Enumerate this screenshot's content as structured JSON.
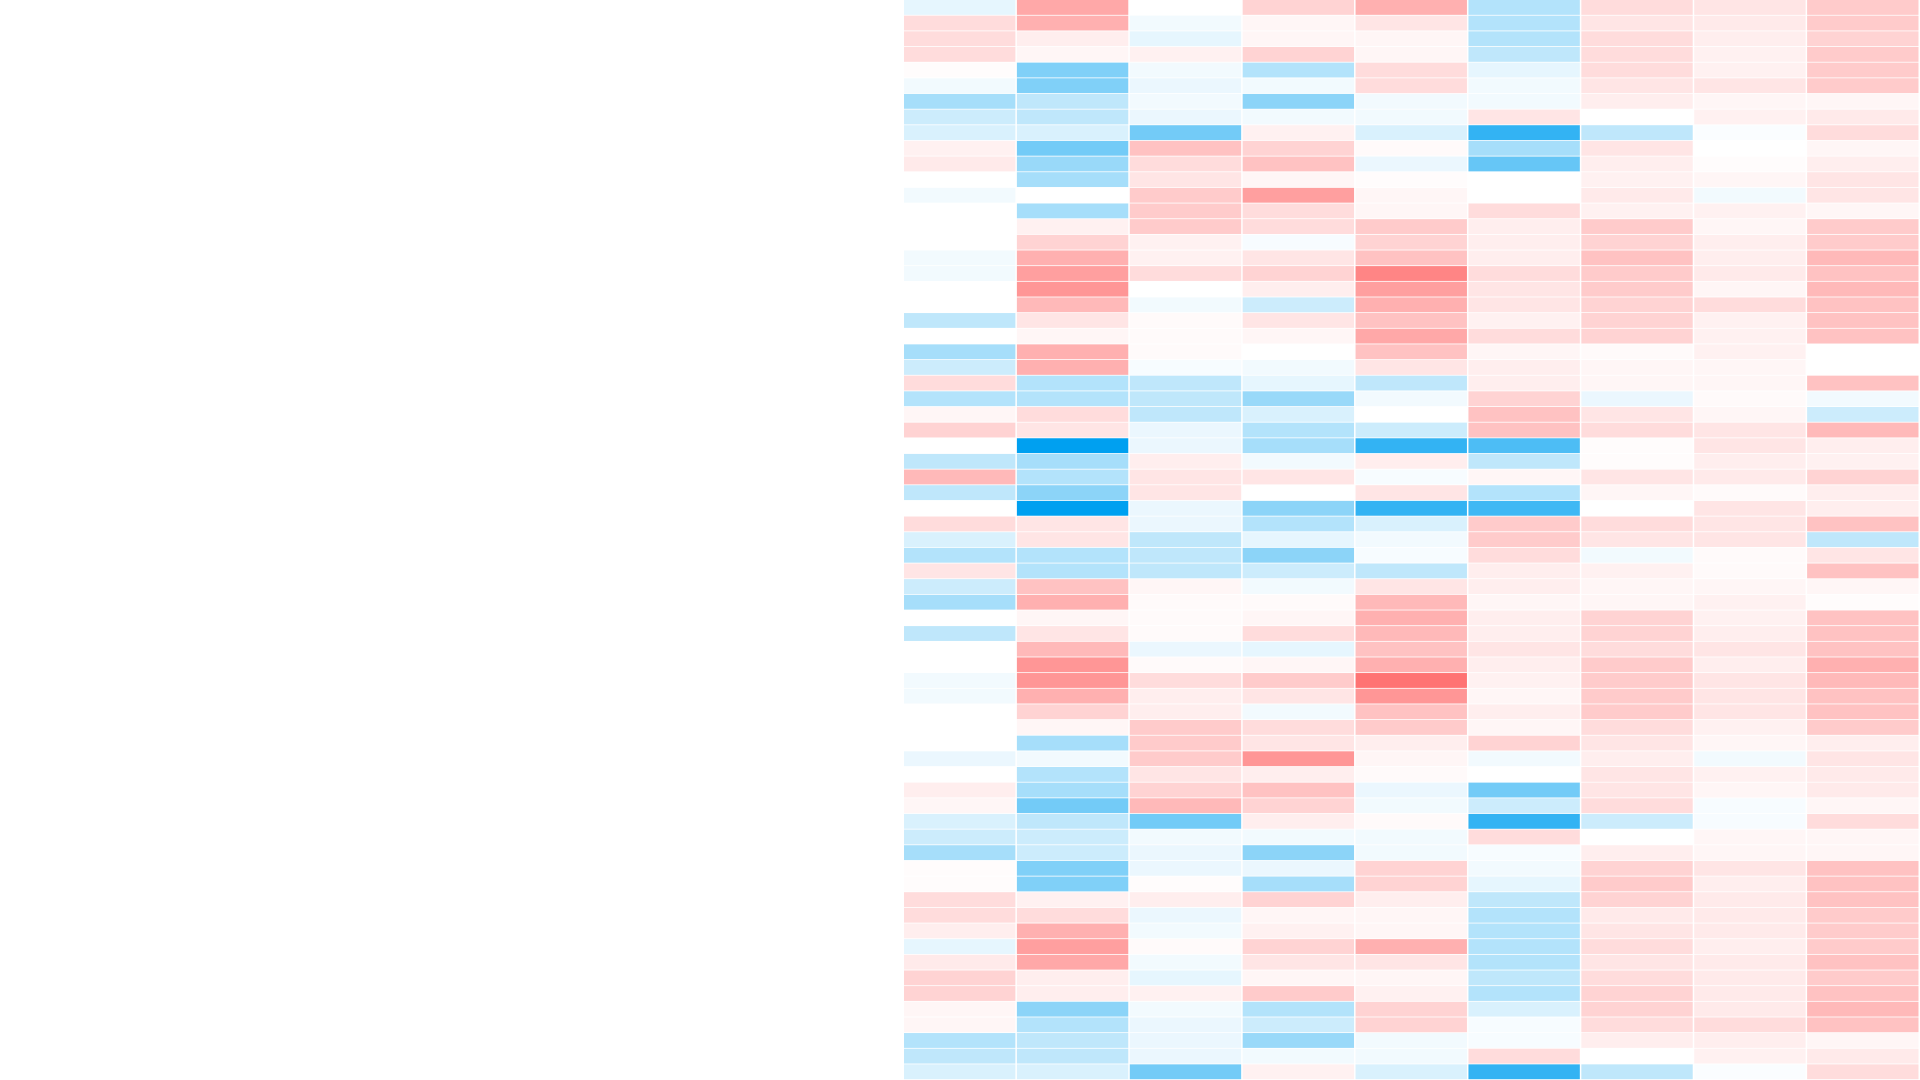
{
  "chart_data": {
    "type": "heatmap",
    "zlim": [
      -1,
      1
    ],
    "colors": [
      "#00a0f0",
      "#ffffff",
      "#ff5050"
    ],
    "values": [
      [
        -0.1,
        0.5,
        0,
        0.25,
        0.45,
        -0.3,
        0.2,
        0.15,
        0.3
      ],
      [
        0.2,
        0.45,
        -0.05,
        0.05,
        0.15,
        -0.3,
        0.15,
        0.12,
        0.3
      ],
      [
        0.2,
        0.1,
        -0.1,
        0.05,
        0.05,
        -0.3,
        0.2,
        0.1,
        0.25
      ],
      [
        0.2,
        0.05,
        0.08,
        0.25,
        0.05,
        -0.25,
        0.2,
        0.08,
        0.3
      ],
      [
        0.02,
        -0.5,
        -0.05,
        -0.3,
        0.2,
        -0.1,
        0.2,
        0.08,
        0.3
      ],
      [
        -0.05,
        -0.5,
        -0.08,
        -0.05,
        0.2,
        -0.05,
        0.15,
        0.15,
        0.3
      ],
      [
        -0.35,
        -0.25,
        -0.05,
        -0.45,
        -0.05,
        -0.05,
        0.1,
        0.05,
        0.05
      ],
      [
        -0.2,
        -0.25,
        -0.08,
        -0.05,
        -0.05,
        0.15,
        0,
        0.08,
        0.12
      ],
      [
        -0.15,
        -0.15,
        -0.55,
        0.08,
        -0.15,
        -0.8,
        -0.25,
        -0.02,
        0.2
      ],
      [
        0.08,
        -0.55,
        0.35,
        0.25,
        0.03,
        -0.35,
        0.15,
        0,
        0.05
      ],
      [
        0.12,
        -0.4,
        0.2,
        0.35,
        -0.08,
        -0.6,
        0.1,
        0.02,
        0.1
      ],
      [
        0,
        -0.35,
        0.15,
        0.05,
        0.02,
        0,
        0.08,
        0.05,
        0.15
      ],
      [
        -0.05,
        0,
        0.3,
        0.55,
        0.05,
        0,
        0.12,
        -0.05,
        0.15
      ],
      [
        0,
        -0.35,
        0.3,
        0.2,
        0.05,
        0.2,
        0.08,
        0.08,
        0.05
      ],
      [
        0,
        0.08,
        0.3,
        0.2,
        0.3,
        0.1,
        0.3,
        0.05,
        0.3
      ],
      [
        0,
        0.25,
        0.08,
        -0.03,
        0.25,
        0.1,
        0.25,
        0.1,
        0.3
      ],
      [
        -0.05,
        0.45,
        0.08,
        0.15,
        0.35,
        0.1,
        0.35,
        0.1,
        0.4
      ],
      [
        -0.05,
        0.55,
        0.2,
        0.25,
        0.7,
        0.2,
        0.3,
        0.12,
        0.35
      ],
      [
        0,
        0.6,
        0,
        0.1,
        0.55,
        0.15,
        0.3,
        0.05,
        0.4
      ],
      [
        0,
        0.4,
        -0.05,
        -0.2,
        0.45,
        0.15,
        0.25,
        0.2,
        0.35
      ],
      [
        -0.25,
        0.15,
        0.03,
        0.15,
        0.35,
        0.08,
        0.25,
        0.08,
        0.35
      ],
      [
        0,
        0.05,
        0.03,
        0.05,
        0.5,
        0.2,
        0.25,
        0.08,
        0.35
      ],
      [
        -0.35,
        0.45,
        0.03,
        0,
        0.35,
        0.05,
        0.03,
        0.08,
        0
      ],
      [
        -0.2,
        0.45,
        -0.03,
        -0.05,
        0.15,
        0.1,
        0.05,
        0.05,
        0
      ],
      [
        0.2,
        -0.3,
        -0.25,
        -0.1,
        -0.25,
        0.1,
        0.05,
        0.05,
        0.35
      ],
      [
        -0.3,
        -0.3,
        -0.25,
        -0.4,
        -0.05,
        0.25,
        -0.08,
        0.03,
        -0.05
      ],
      [
        0.05,
        0.2,
        -0.25,
        -0.15,
        0,
        0.35,
        0.15,
        0.05,
        -0.2
      ],
      [
        0.25,
        0.15,
        -0.08,
        -0.3,
        -0.2,
        0.35,
        0.2,
        0.15,
        0.4
      ],
      [
        0,
        -1,
        -0.08,
        -0.35,
        -0.8,
        -0.7,
        0.02,
        0.15,
        0.1
      ],
      [
        -0.25,
        -0.35,
        0.1,
        -0.05,
        0.1,
        -0.25,
        0.02,
        0.1,
        0.08
      ],
      [
        0.4,
        -0.3,
        0.15,
        0.15,
        -0.03,
        0.05,
        0.15,
        0.12,
        0.25
      ],
      [
        -0.25,
        -0.45,
        0.15,
        0,
        0.15,
        -0.3,
        0.05,
        0.03,
        0.1
      ],
      [
        0,
        -1,
        -0.08,
        -0.45,
        -0.8,
        -0.75,
        0,
        0.15,
        0.1
      ],
      [
        0.2,
        0.15,
        -0.08,
        -0.3,
        -0.15,
        0.3,
        0.2,
        0.15,
        0.35
      ],
      [
        -0.15,
        0.15,
        -0.25,
        -0.1,
        -0.05,
        0.3,
        0.15,
        0.15,
        -0.25
      ],
      [
        -0.3,
        -0.3,
        -0.25,
        -0.45,
        -0.03,
        0.2,
        -0.05,
        0.03,
        0.15
      ],
      [
        0.15,
        -0.3,
        -0.25,
        -0.2,
        -0.25,
        0.1,
        0.08,
        0.03,
        0.35
      ],
      [
        -0.2,
        0.35,
        0.05,
        -0.05,
        0.15,
        0.1,
        0.05,
        0.05,
        0.05
      ],
      [
        -0.35,
        0.45,
        0.03,
        0.03,
        0.4,
        0.05,
        0.05,
        0.08,
        0.02
      ],
      [
        0,
        0.05,
        0.03,
        0.05,
        0.45,
        0.1,
        0.25,
        0.08,
        0.35
      ],
      [
        -0.25,
        0.15,
        0.03,
        0.2,
        0.4,
        0.1,
        0.25,
        0.1,
        0.35
      ],
      [
        0,
        0.4,
        -0.08,
        -0.1,
        0.35,
        0.15,
        0.2,
        0.15,
        0.35
      ],
      [
        0,
        0.6,
        0.03,
        0.05,
        0.45,
        0.1,
        0.3,
        0.1,
        0.45
      ],
      [
        -0.05,
        0.6,
        0.2,
        0.3,
        0.8,
        0.08,
        0.3,
        0.15,
        0.4
      ],
      [
        -0.05,
        0.45,
        0.1,
        0.15,
        0.6,
        0.05,
        0.3,
        0.15,
        0.35
      ],
      [
        0,
        0.25,
        0.1,
        -0.05,
        0.35,
        0.1,
        0.3,
        0.15,
        0.35
      ],
      [
        0,
        0.05,
        0.3,
        0.2,
        0.3,
        0.05,
        0.2,
        0.08,
        0.3
      ],
      [
        0,
        -0.35,
        0.3,
        0.15,
        0.1,
        0.25,
        0.15,
        0.05,
        0.1
      ],
      [
        -0.08,
        -0.05,
        0.3,
        0.6,
        0.05,
        -0.05,
        0.1,
        -0.05,
        0.15
      ],
      [
        0,
        -0.3,
        0.15,
        0.1,
        0.03,
        0,
        0.15,
        0.08,
        0.12
      ],
      [
        0.1,
        -0.35,
        0.25,
        0.35,
        -0.08,
        -0.55,
        0.15,
        0.05,
        0.12
      ],
      [
        0.05,
        -0.55,
        0.4,
        0.25,
        -0.05,
        -0.2,
        0.2,
        -0.03,
        0.05
      ],
      [
        -0.15,
        -0.25,
        -0.55,
        0.1,
        0.03,
        -0.8,
        -0.2,
        -0.03,
        0.2
      ],
      [
        -0.2,
        -0.2,
        -0.05,
        -0.05,
        -0.05,
        0.2,
        0,
        0.05,
        0.05
      ],
      [
        -0.35,
        -0.2,
        -0.08,
        -0.45,
        -0.05,
        -0.03,
        0.1,
        0.05,
        0.05
      ],
      [
        0.02,
        -0.5,
        -0.08,
        -0.08,
        0.25,
        -0.05,
        0.25,
        0.15,
        0.35
      ],
      [
        0.02,
        -0.5,
        0.02,
        -0.35,
        0.25,
        -0.1,
        0.3,
        0.1,
        0.35
      ],
      [
        0.2,
        0.08,
        0.1,
        0.25,
        0.1,
        -0.25,
        0.25,
        0.12,
        0.35
      ],
      [
        0.2,
        0.2,
        -0.08,
        0.05,
        0.05,
        -0.3,
        0.12,
        0.12,
        0.3
      ],
      [
        0.1,
        0.45,
        -0.05,
        0.08,
        0.05,
        -0.3,
        0.15,
        0.12,
        0.3
      ],
      [
        -0.1,
        0.55,
        0.03,
        0.25,
        0.45,
        -0.3,
        0.2,
        0.1,
        0.3
      ],
      [
        0.12,
        0.5,
        -0.05,
        0.15,
        0.15,
        -0.3,
        0.15,
        0.12,
        0.35
      ],
      [
        0.25,
        0.1,
        -0.1,
        0.05,
        0.05,
        -0.25,
        0.2,
        0.12,
        0.3
      ],
      [
        0.25,
        0.1,
        0.08,
        0.3,
        0.08,
        -0.3,
        0.25,
        0.12,
        0.35
      ],
      [
        0.05,
        -0.45,
        -0.05,
        -0.3,
        0.25,
        -0.15,
        0.25,
        0.12,
        0.4
      ],
      [
        0.05,
        -0.3,
        -0.08,
        -0.2,
        0.25,
        -0.03,
        0.2,
        0.2,
        0.35
      ],
      [
        -0.3,
        -0.25,
        -0.08,
        -0.4,
        -0.05,
        -0.03,
        0.1,
        0.1,
        0.05
      ],
      [
        -0.25,
        -0.25,
        -0.08,
        -0.05,
        -0.05,
        0.2,
        0,
        0.08,
        0.12
      ],
      [
        -0.15,
        -0.15,
        -0.55,
        0.08,
        -0.15,
        -0.8,
        -0.25,
        -0.02,
        0.2
      ]
    ]
  }
}
